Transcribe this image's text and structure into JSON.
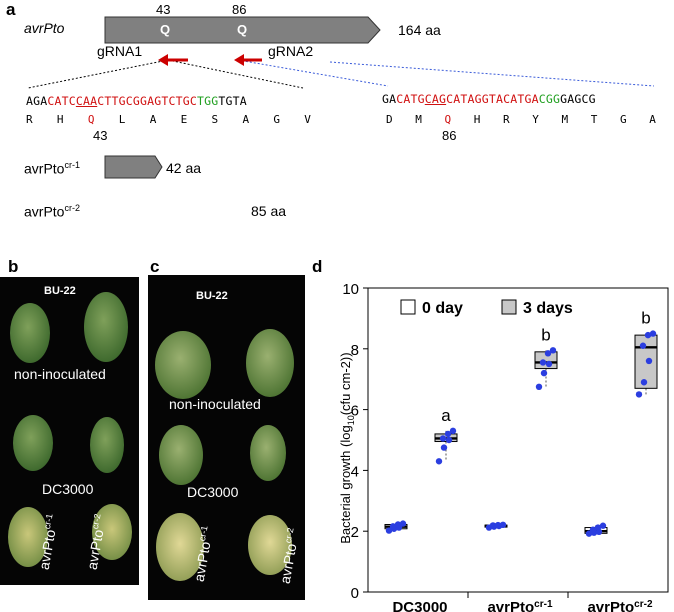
{
  "panel_a": {
    "letter": "a",
    "gene": "avrPto",
    "gene_len": "164 aa",
    "site1_pos": "43",
    "site2_pos": "86",
    "site_aa": "Q",
    "grna1": "gRNA1",
    "grna2": "gRNA2",
    "seq1": {
      "pre": "AGA",
      "red1": "CATC",
      "red_ul": "CAA",
      "red2": "CTTGCGGAGTCTGC",
      "pam": "TGG",
      "post": "TGTA"
    },
    "aa1": [
      "R",
      "H",
      "Q",
      "L",
      "A",
      "E",
      "S",
      "A",
      "G",
      "V"
    ],
    "aa1_pos": "43",
    "seq2": {
      "pre": "GA",
      "red1": "CATG",
      "red_ul": "CAG",
      "red2": "CATAGGTACATGA",
      "pam": "CGG",
      "post": "GAGCG"
    },
    "aa2": [
      "D",
      "M",
      "Q",
      "H",
      "R",
      "Y",
      "M",
      "T",
      "G",
      "A"
    ],
    "aa2_pos": "86",
    "mut1_label": "avrPto",
    "mut1_sup": "cr-1",
    "mut1_len": "42 aa",
    "mut2_label": "avrPto",
    "mut2_sup": "cr-2",
    "mut2_len": "85 aa"
  },
  "panel_b": {
    "letter": "b",
    "line": "BU-22",
    "lbl_noninoc": "non-inoculated",
    "lbl_dc": "DC3000",
    "lbl_cr1": "avrPto",
    "lbl_cr1_sup": "cr-1",
    "lbl_cr2": "avrPto",
    "lbl_cr2_sup": "cr-2"
  },
  "panel_c": {
    "letter": "c",
    "line": "BU-22",
    "lbl_noninoc": "non-inoculated",
    "lbl_dc": "DC3000",
    "lbl_cr1": "avrPto",
    "lbl_cr1_sup": "cr-1",
    "lbl_cr2": "avrPto",
    "lbl_cr2_sup": "cr-2"
  },
  "panel_d": {
    "letter": "d"
  },
  "colors": {
    "bar_gray": "#808080",
    "arrow_red": "#cc0000",
    "seq_red": "#d01010",
    "pam_green": "#22a022",
    "dot_blue": "#2b3ee0",
    "box_gray": "#c8c8c8",
    "dash_blue": "#3a5bd9"
  },
  "chart_data": {
    "type": "box",
    "ylabel": "Bacterial growth (log10(cfu cm-2))",
    "ylim": [
      0,
      10
    ],
    "yticks": [
      0,
      2,
      4,
      6,
      8,
      10
    ],
    "categories": [
      "DC3000",
      "avrPto",
      "avrPto"
    ],
    "category_sups": [
      "",
      "cr-1",
      "cr-2"
    ],
    "legend": [
      "0 day",
      "3 days"
    ],
    "legend_position": "top",
    "series": [
      {
        "name": "0 day",
        "color": "#ffffff",
        "boxes": [
          {
            "min": 2.0,
            "q1": 2.08,
            "median": 2.15,
            "q3": 2.22,
            "max": 2.28,
            "points": [
              2.02,
              2.08,
              2.12,
              2.16,
              2.22,
              2.25
            ]
          },
          {
            "min": 2.1,
            "q1": 2.15,
            "median": 2.18,
            "q3": 2.2,
            "max": 2.22,
            "points": [
              2.12,
              2.15,
              2.17,
              2.19,
              2.2,
              2.21
            ]
          },
          {
            "min": 1.9,
            "q1": 1.93,
            "median": 2.0,
            "q3": 2.12,
            "max": 2.2,
            "points": [
              1.92,
              1.95,
              1.98,
              2.05,
              2.12,
              2.18
            ]
          }
        ]
      },
      {
        "name": "3 days",
        "color": "#c8c8c8",
        "boxes": [
          {
            "min": 4.3,
            "q1": 4.95,
            "median": 5.05,
            "q3": 5.2,
            "max": 5.3,
            "points": [
              4.3,
              4.75,
              5.0,
              5.05,
              5.2,
              5.3
            ]
          },
          {
            "min": 6.75,
            "q1": 7.35,
            "median": 7.55,
            "q3": 7.9,
            "max": 7.95,
            "points": [
              6.75,
              7.2,
              7.5,
              7.55,
              7.85,
              7.95
            ]
          },
          {
            "min": 6.5,
            "q1": 6.7,
            "median": 8.05,
            "q3": 8.45,
            "max": 8.5,
            "points": [
              6.5,
              6.9,
              7.6,
              8.1,
              8.45,
              8.5
            ]
          }
        ]
      }
    ],
    "annotations": [
      "a",
      "b",
      "b"
    ]
  }
}
